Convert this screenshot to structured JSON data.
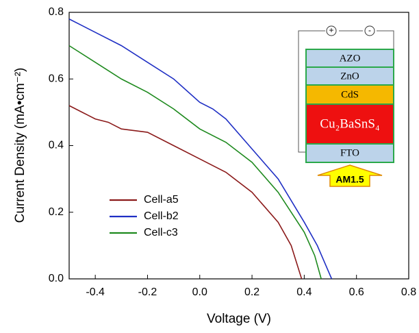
{
  "chart_data": {
    "type": "line",
    "x_label": "Voltage (V)",
    "y_label": "Current Density (mA•cm⁻²)",
    "xlim": [
      -0.5,
      0.8
    ],
    "ylim": [
      0,
      0.8
    ],
    "xticks": [
      -0.4,
      -0.2,
      {
        "value": 0,
        "label": "0.0"
      },
      0.2,
      0.4,
      0.6,
      0.8
    ],
    "yticks": [
      {
        "value": 0,
        "label": "0.0"
      },
      0.2,
      0.4,
      0.6,
      0.8
    ],
    "legend": "lower left",
    "series": [
      {
        "name": "Cell-a5",
        "color": "#8b1a1a",
        "x": [
          -0.5,
          -0.45,
          -0.4,
          -0.35,
          -0.3,
          -0.2,
          -0.1,
          0,
          0.05,
          0.1,
          0.2,
          0.3,
          0.35,
          0.39
        ],
        "values": [
          0.52,
          0.5,
          0.48,
          0.47,
          0.45,
          0.44,
          0.4,
          0.36,
          0.34,
          0.32,
          0.26,
          0.17,
          0.1,
          0.0
        ]
      },
      {
        "name": "Cell-b2",
        "color": "#1f2fc4",
        "x": [
          -0.5,
          -0.45,
          -0.4,
          -0.3,
          -0.2,
          -0.1,
          0,
          0.05,
          0.1,
          0.2,
          0.3,
          0.4,
          0.45,
          0.505
        ],
        "values": [
          0.78,
          0.76,
          0.74,
          0.7,
          0.65,
          0.6,
          0.53,
          0.51,
          0.48,
          0.39,
          0.3,
          0.17,
          0.1,
          0.0
        ]
      },
      {
        "name": "Cell-c3",
        "color": "#1e8a1e",
        "x": [
          -0.5,
          -0.4,
          -0.3,
          -0.2,
          -0.1,
          0,
          0.1,
          0.2,
          0.3,
          0.4,
          0.44,
          0.465
        ],
        "values": [
          0.7,
          0.65,
          0.6,
          0.56,
          0.51,
          0.45,
          0.41,
          0.35,
          0.26,
          0.14,
          0.07,
          0.0
        ]
      }
    ]
  },
  "inset": {
    "plus": "+",
    "minus": "-",
    "layers": [
      "AZO",
      "ZnO",
      "CdS",
      "Cu₂BaSnS₄",
      "FTO"
    ],
    "light": "AM1.5"
  }
}
